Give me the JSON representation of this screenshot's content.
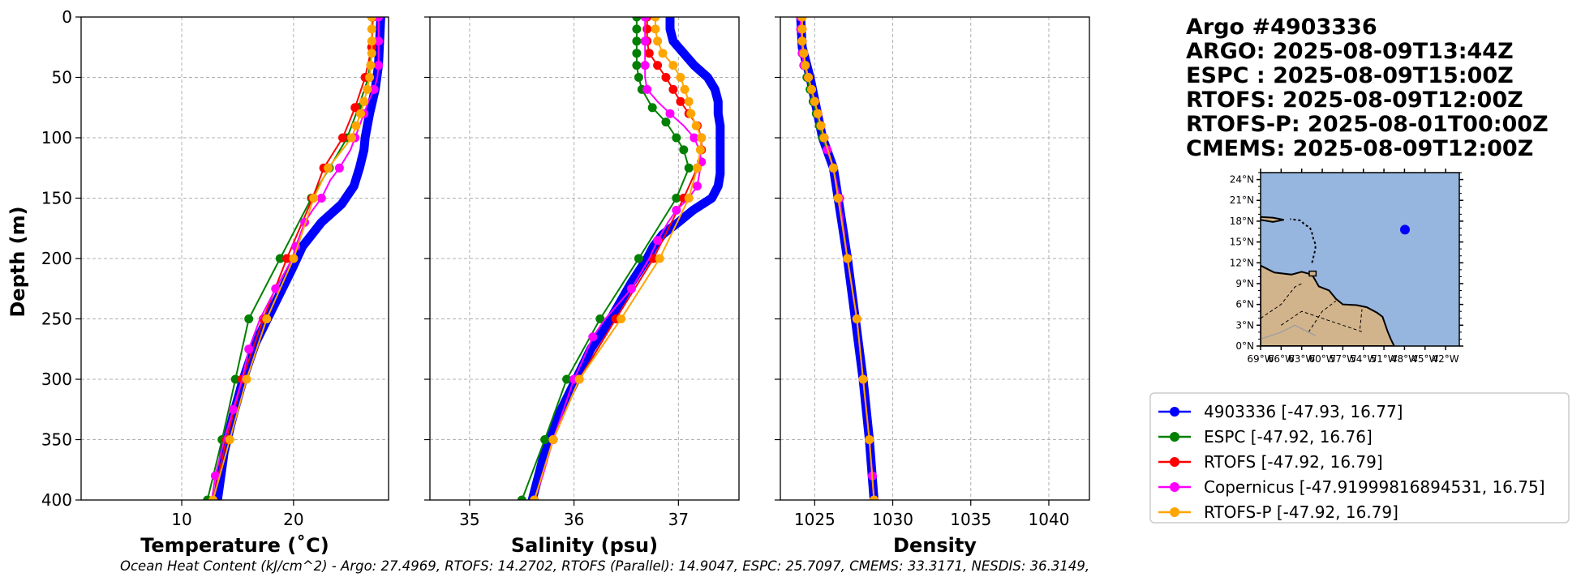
{
  "chart_data": {
    "type": "line",
    "title": "Argo #4903336",
    "header_lines": [
      "Argo #4903336",
      "ARGO: 2025-08-09T13:44Z",
      "ESPC : 2025-08-09T15:00Z",
      "RTOFS: 2025-08-09T12:00Z",
      "RTOFS-P: 2025-08-01T00:00Z",
      "CMEMS: 2025-08-09T12:00Z"
    ],
    "ylabel": "Depth (m)",
    "ylim": [
      0,
      400
    ],
    "y_inverted": true,
    "y_ticks": [
      0,
      50,
      100,
      150,
      200,
      250,
      300,
      350,
      400
    ],
    "grid": true,
    "panels": [
      {
        "id": "temperature",
        "xlabel": "Temperature (˚C)",
        "xlim": [
          1,
          28.5
        ],
        "x_ticks": [
          10,
          20
        ],
        "series": [
          {
            "name": "4903336 [-47.93, 16.77]",
            "color": "#0000ff",
            "thick": true,
            "depth": [
              0,
              20,
              40,
              60,
              80,
              100,
              110,
              125,
              140,
              155,
              170,
              190,
              210,
              240,
              270,
              300,
              330,
              360,
              400
            ],
            "values": [
              27.8,
              27.7,
              27.6,
              27.3,
              26.8,
              26.4,
              26.3,
              25.9,
              25.4,
              24.3,
              22.5,
              20.8,
              19.8,
              18.2,
              16.6,
              15.5,
              14.6,
              13.8,
              13.2
            ]
          },
          {
            "name": "ESPC [-47.92, 16.76]",
            "color": "#008000",
            "depth": [
              0,
              25,
              50,
              75,
              100,
              125,
              150,
              200,
              250,
              300,
              350,
              400
            ],
            "values": [
              27.0,
              27.0,
              26.7,
              25.8,
              24.8,
              23.2,
              21.6,
              18.8,
              16.0,
              14.8,
              13.6,
              12.3
            ]
          },
          {
            "name": "RTOFS [-47.92, 16.79]",
            "color": "#ff0000",
            "depth": [
              0,
              25,
              50,
              75,
              100,
              125,
              150,
              200,
              250,
              300,
              350,
              400
            ],
            "values": [
              27.1,
              27.0,
              26.4,
              25.5,
              24.4,
              22.7,
              21.7,
              19.4,
              17.3,
              15.4,
              14.0,
              12.8
            ]
          },
          {
            "name": "Copernicus [-47.91999816894531, 16.75]",
            "color": "#ff00ff",
            "depth": [
              0,
              10,
              20,
              30,
              40,
              50,
              60,
              70,
              80,
              90,
              100,
              110,
              125,
              135,
              150,
              160,
              170,
              180,
              190,
              200,
              225,
              250,
              275,
              300,
              325,
              350,
              380,
              400
            ],
            "values": [
              27.6,
              27.6,
              27.6,
              27.6,
              27.6,
              27.5,
              27.2,
              26.7,
              26.3,
              25.9,
              25.5,
              25.1,
              24.1,
              23.3,
              22.5,
              21.7,
              21.0,
              20.6,
              20.2,
              19.9,
              18.4,
              17.0,
              16.0,
              15.4,
              14.6,
              13.8,
              13.0,
              12.7
            ]
          },
          {
            "name": "RTOFS-P [-47.92, 16.79]",
            "color": "#ffa500",
            "depth": [
              0,
              10,
              20,
              30,
              40,
              50,
              60,
              70,
              80,
              90,
              100,
              125,
              150,
              200,
              250,
              300,
              350,
              400
            ],
            "values": [
              27.0,
              27.0,
              27.0,
              27.0,
              26.9,
              26.8,
              26.6,
              26.3,
              26.0,
              25.6,
              25.2,
              23.1,
              21.8,
              20.0,
              17.6,
              15.8,
              14.3,
              12.8
            ]
          }
        ]
      },
      {
        "id": "salinity",
        "xlabel": "Salinity (psu)",
        "xlim": [
          34.62,
          37.58
        ],
        "x_ticks": [
          35,
          36,
          37
        ],
        "series": [
          {
            "name": "4903336 [-47.93, 16.77]",
            "color": "#0000ff",
            "thick": true,
            "depth": [
              0,
              10,
              20,
              30,
              40,
              50,
              60,
              70,
              80,
              90,
              100,
              110,
              120,
              130,
              140,
              150,
              160,
              170,
              180,
              190,
              200,
              220,
              250,
              275,
              300,
              330,
              360,
              400
            ],
            "values": [
              36.92,
              36.92,
              36.95,
              37.05,
              37.15,
              37.28,
              37.35,
              37.38,
              37.38,
              37.4,
              37.4,
              37.4,
              37.4,
              37.4,
              37.38,
              37.32,
              37.14,
              37.0,
              36.85,
              36.76,
              36.7,
              36.55,
              36.35,
              36.16,
              36.02,
              35.85,
              35.72,
              35.6
            ]
          },
          {
            "name": "ESPC [-47.92, 16.76]",
            "color": "#008000",
            "depth": [
              0,
              10,
              20,
              30,
              40,
              50,
              60,
              75,
              87,
              100,
              110,
              125,
              150,
              200,
              250,
              300,
              350,
              400
            ],
            "values": [
              36.6,
              36.6,
              36.6,
              36.6,
              36.6,
              36.62,
              36.65,
              36.75,
              36.88,
              36.98,
              37.05,
              37.1,
              36.98,
              36.62,
              36.25,
              35.93,
              35.72,
              35.5
            ]
          },
          {
            "name": "RTOFS [-47.92, 16.79]",
            "color": "#ff0000",
            "depth": [
              0,
              10,
              20,
              30,
              40,
              50,
              60,
              70,
              80,
              90,
              100,
              110,
              125,
              150,
              200,
              250,
              300,
              350,
              400
            ],
            "values": [
              36.7,
              36.7,
              36.7,
              36.72,
              36.8,
              36.88,
              36.95,
              37.02,
              37.1,
              37.18,
              37.22,
              37.22,
              37.18,
              37.05,
              36.76,
              36.4,
              36.05,
              35.8,
              35.62
            ]
          },
          {
            "name": "Copernicus [-47.91999816894531, 16.75]",
            "color": "#ff00ff",
            "depth": [
              0,
              10,
              20,
              30,
              40,
              50,
              60,
              70,
              80,
              90,
              100,
              110,
              120,
              130,
              140,
              150,
              160,
              170,
              185,
              200,
              225,
              250,
              265,
              285,
              300,
              325,
              350,
              380,
              400
            ],
            "values": [
              36.68,
              36.68,
              36.68,
              36.68,
              36.68,
              36.68,
              36.7,
              36.8,
              36.92,
              37.05,
              37.15,
              37.2,
              37.22,
              37.2,
              37.18,
              37.1,
              36.98,
              36.9,
              36.8,
              36.72,
              36.55,
              36.3,
              36.18,
              36.08,
              36.0,
              35.9,
              35.8,
              35.7,
              35.62
            ]
          },
          {
            "name": "RTOFS-P [-47.92, 16.79]",
            "color": "#ffa500",
            "depth": [
              0,
              10,
              20,
              30,
              40,
              50,
              60,
              70,
              80,
              90,
              100,
              110,
              125,
              150,
              200,
              250,
              300,
              350,
              400
            ],
            "values": [
              36.78,
              36.78,
              36.8,
              36.85,
              36.95,
              37.02,
              37.06,
              37.1,
              37.12,
              37.17,
              37.22,
              37.21,
              37.18,
              37.1,
              36.82,
              36.45,
              36.05,
              35.8,
              35.62
            ]
          }
        ]
      },
      {
        "id": "density",
        "xlabel": "Density",
        "xlim": [
          1022.8,
          1042.6
        ],
        "x_ticks": [
          1025,
          1030,
          1035,
          1040
        ],
        "series": [
          {
            "name": "4903336 [-47.93, 16.77]",
            "color": "#0000ff",
            "thick": true,
            "depth": [
              0,
              25,
              50,
              75,
              100,
              125,
              150,
              175,
              200,
              250,
              300,
              350,
              400
            ],
            "values": [
              1024.1,
              1024.2,
              1024.7,
              1025.1,
              1025.5,
              1026.2,
              1026.5,
              1026.8,
              1027.1,
              1027.6,
              1028.1,
              1028.5,
              1028.8
            ]
          },
          {
            "name": "ESPC [-47.92, 16.76]",
            "color": "#008000",
            "depth": [
              0,
              10,
              20,
              30,
              40,
              50,
              60,
              70,
              80,
              90,
              100,
              125,
              150,
              200,
              250,
              300,
              350,
              400
            ],
            "values": [
              1024.1,
              1024.1,
              1024.2,
              1024.2,
              1024.3,
              1024.5,
              1024.7,
              1024.9,
              1025.1,
              1025.3,
              1025.5,
              1026.2,
              1026.5,
              1027.1,
              1027.7,
              1028.1,
              1028.5,
              1028.8
            ]
          },
          {
            "name": "RTOFS [-47.92, 16.79]",
            "color": "#ff0000",
            "depth": [
              0,
              10,
              20,
              30,
              40,
              50,
              60,
              70,
              80,
              90,
              100,
              125,
              150,
              200,
              250,
              300,
              350,
              400
            ],
            "values": [
              1024.2,
              1024.2,
              1024.2,
              1024.3,
              1024.4,
              1024.6,
              1024.8,
              1025.0,
              1025.2,
              1025.4,
              1025.6,
              1026.2,
              1026.5,
              1027.1,
              1027.7,
              1028.1,
              1028.5,
              1028.8
            ]
          },
          {
            "name": "Copernicus [-47.91999816894531, 16.75]",
            "color": "#ff00ff",
            "depth": [
              0,
              10,
              20,
              30,
              40,
              50,
              60,
              70,
              80,
              90,
              100,
              110,
              125,
              150,
              200,
              250,
              300,
              350,
              380,
              400
            ],
            "values": [
              1024.1,
              1024.1,
              1024.2,
              1024.2,
              1024.3,
              1024.6,
              1024.8,
              1025.0,
              1025.2,
              1025.4,
              1025.6,
              1025.8,
              1026.2,
              1026.6,
              1027.1,
              1027.7,
              1028.1,
              1028.5,
              1028.7,
              1028.8
            ]
          },
          {
            "name": "RTOFS-P [-47.92, 16.79]",
            "color": "#ffa500",
            "depth": [
              0,
              10,
              20,
              30,
              40,
              50,
              60,
              70,
              80,
              90,
              100,
              125,
              150,
              200,
              250,
              300,
              350,
              400
            ],
            "values": [
              1024.2,
              1024.2,
              1024.2,
              1024.3,
              1024.4,
              1024.6,
              1024.8,
              1025.0,
              1025.2,
              1025.4,
              1025.6,
              1026.2,
              1026.5,
              1027.1,
              1027.7,
              1028.1,
              1028.5,
              1028.8
            ]
          }
        ]
      }
    ],
    "legend": {
      "placement": "lower-right",
      "entries": [
        {
          "label": "4903336 [-47.93, 16.77]",
          "color": "#0000ff"
        },
        {
          "label": "ESPC [-47.92, 16.76]",
          "color": "#008000"
        },
        {
          "label": "RTOFS [-47.92, 16.79]",
          "color": "#ff0000"
        },
        {
          "label": "Copernicus [-47.91999816894531, 16.75]",
          "color": "#ff00ff"
        },
        {
          "label": "RTOFS-P [-47.92, 16.79]",
          "color": "#ffa500"
        }
      ]
    },
    "inset_map": {
      "lat_range": [
        0,
        25
      ],
      "lon_range": [
        -69,
        -40
      ],
      "lat_ticks": [
        "24°N",
        "21°N",
        "18°N",
        "15°N",
        "12°N",
        "9°N",
        "6°N",
        "3°N",
        "0°N"
      ],
      "lon_ticks": [
        "69°W",
        "66°W",
        "63°W",
        "60°W",
        "57°W",
        "54°W",
        "51°W",
        "48°W",
        "45°W",
        "42°W"
      ],
      "float_lon": -47.93,
      "float_lat": 16.77,
      "ocean_color": "#96b6e0",
      "land_color": "#d2b48c",
      "marker_color": "#0000ff"
    },
    "footer": "Ocean Heat Content (kJ/cm^2) - Argo: 27.4969,  RTOFS: 14.2702,  RTOFS (Parallel): 14.9047,  ESPC: 25.7097,  CMEMS: 33.3171,  NESDIS: 36.3149,"
  }
}
